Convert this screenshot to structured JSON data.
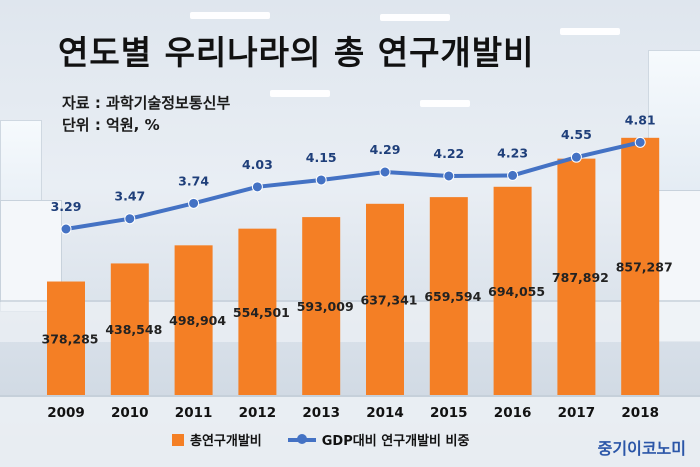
{
  "title": "연도별 우리나라의 총 연구개발비",
  "source_line": "자료 : 과학기술정보통신부",
  "unit_line": "단위 : 억원, %",
  "brand": "중기이코노미",
  "colors": {
    "bar": "#f47f25",
    "line": "#4472c4",
    "rate_text": "#1f3f7a"
  },
  "chart_data": {
    "type": "bar",
    "categories": [
      "2009",
      "2010",
      "2011",
      "2012",
      "2013",
      "2014",
      "2015",
      "2016",
      "2017",
      "2018"
    ],
    "series": [
      {
        "name": "총연구개발비",
        "type": "bar",
        "values": [
          378285,
          438548,
          498904,
          554501,
          593009,
          637341,
          659594,
          694055,
          787892,
          857287
        ],
        "labels": [
          "378,285",
          "438,548",
          "498,904",
          "554,501",
          "593,009",
          "637,341",
          "659,594",
          "694,055",
          "787,892",
          "857,287"
        ]
      },
      {
        "name": "GDP대비 연구개발비 비중",
        "type": "line",
        "values": [
          3.29,
          3.47,
          3.74,
          4.03,
          4.15,
          4.29,
          4.22,
          4.23,
          4.55,
          4.81
        ],
        "labels": [
          "3.29",
          "3.47",
          "3.74",
          "4.03",
          "4.15",
          "4.29",
          "4.22",
          "4.23",
          "4.55",
          "4.81"
        ]
      }
    ],
    "legend_position": "bottom",
    "grid": false
  }
}
